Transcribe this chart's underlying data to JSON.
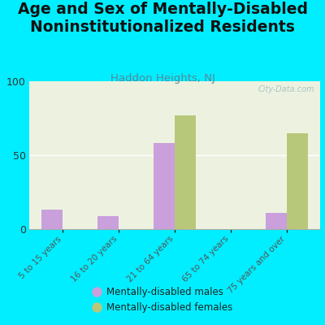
{
  "title": "Age and Sex of Mentally-Disabled\nNoninstitutionalized Residents",
  "subtitle": "Haddon Heights, NJ",
  "categories": [
    "5 to 15 years",
    "16 to 20 years",
    "21 to 64 years",
    "65 to 74 years",
    "75 years and over"
  ],
  "males": [
    13,
    9,
    58,
    0,
    11
  ],
  "females": [
    0,
    0,
    77,
    0,
    65
  ],
  "male_color": "#c9a0dc",
  "female_color": "#b8c87a",
  "background_outer": "#00eeff",
  "background_plot": "#edf2e0",
  "ylim": [
    0,
    100
  ],
  "yticks": [
    0,
    50,
    100
  ],
  "bar_width": 0.38,
  "title_fontsize": 13.5,
  "subtitle_fontsize": 9.5,
  "watermark": "City-Data.com",
  "legend_male": "Mentally-disabled males",
  "legend_female": "Mentally-disabled females"
}
